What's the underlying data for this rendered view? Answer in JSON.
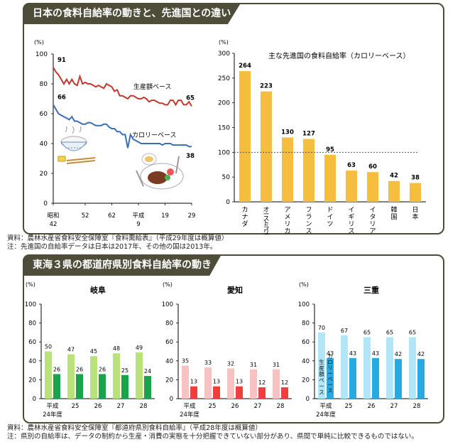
{
  "section1": {
    "title": "日本の食料自給率の動きと、先進国との違い",
    "footnote1": "資料：農林水産省食料安全保障室『食料需給表』（平成29年度は概算値）",
    "footnote2": "注：先進国の自給率データは日本は2017年、その他の国は2013年。"
  },
  "section2": {
    "title": "東海３県の都道府県別食料自給率の動き",
    "footnote1": "資料：農林水産省食料安全保障室『都道府県別食料自給率』（平成28年度は概算値）",
    "footnote2": "注：県別の自給率は、データの制約から生産・消費の実態を十分把握できていない部分があり、県間で単純に比較できるものではない。"
  },
  "colors": {
    "production": "#c0392b",
    "calorie": "#3a6fb5",
    "country_bar": "#f6be3f",
    "gifu_prod": "#b9e27a",
    "gifu_cal": "#1aa34a",
    "aichi_prod": "#f6c2c2",
    "aichi_cal": "#ee3e3e",
    "mie_prod": "#b0e6f6",
    "mie_cal": "#27aae1"
  },
  "chart_data": [
    {
      "type": "line",
      "unit": "(%)",
      "ylim": [
        0,
        100
      ],
      "yticks": [
        0,
        20,
        40,
        60,
        80,
        100
      ],
      "x_range": [
        1965,
        2017
      ],
      "x_ticks": [
        {
          "x": 1965,
          "top": "昭和",
          "bottom": "42"
        },
        {
          "x": 1977,
          "top": "52",
          "bottom": ""
        },
        {
          "x": 1987,
          "top": "62",
          "bottom": ""
        },
        {
          "x": 1997,
          "top": "平成",
          "bottom": "9"
        },
        {
          "x": 2007,
          "top": "19",
          "bottom": ""
        },
        {
          "x": 2017,
          "top": "29",
          "bottom": ""
        }
      ],
      "series": [
        {
          "name": "生産額ベース",
          "start_label": "91",
          "end_label": "65",
          "x": [
            1965,
            1966,
            1967,
            1968,
            1969,
            1970,
            1971,
            1972,
            1973,
            1974,
            1975,
            1976,
            1977,
            1978,
            1979,
            1980,
            1981,
            1982,
            1983,
            1984,
            1985,
            1986,
            1987,
            1988,
            1989,
            1990,
            1991,
            1992,
            1993,
            1994,
            1995,
            1996,
            1997,
            1998,
            1999,
            2000,
            2001,
            2002,
            2003,
            2004,
            2005,
            2006,
            2007,
            2008,
            2009,
            2010,
            2011,
            2012,
            2013,
            2014,
            2015,
            2016,
            2017
          ],
          "values": [
            91,
            88,
            86,
            83,
            80,
            83,
            80,
            83,
            80,
            79,
            85,
            80,
            81,
            80,
            80,
            79,
            78,
            79,
            78,
            77,
            80,
            79,
            78,
            75,
            76,
            72,
            72,
            71,
            70,
            72,
            72,
            71,
            70,
            70,
            71,
            70,
            68,
            69,
            69,
            68,
            67,
            67,
            66,
            66,
            69,
            69,
            66,
            69,
            69,
            66,
            66,
            68,
            65
          ]
        },
        {
          "name": "カロリーベース",
          "start_label": "66",
          "end_label": "38",
          "x": [
            1965,
            1966,
            1967,
            1968,
            1969,
            1970,
            1971,
            1972,
            1973,
            1974,
            1975,
            1976,
            1977,
            1978,
            1979,
            1980,
            1981,
            1982,
            1983,
            1984,
            1985,
            1986,
            1987,
            1988,
            1989,
            1990,
            1991,
            1992,
            1993,
            1994,
            1995,
            1996,
            1997,
            1998,
            1999,
            2000,
            2001,
            2002,
            2003,
            2004,
            2005,
            2006,
            2007,
            2008,
            2009,
            2010,
            2011,
            2012,
            2013,
            2014,
            2015,
            2016,
            2017
          ],
          "values": [
            66,
            63,
            60,
            59,
            58,
            57,
            56,
            58,
            55,
            55,
            54,
            53,
            53,
            54,
            54,
            53,
            52,
            52,
            52,
            53,
            53,
            51,
            50,
            50,
            48,
            48,
            46,
            46,
            37,
            46,
            43,
            42,
            41,
            40,
            40,
            40,
            40,
            40,
            40,
            40,
            40,
            39,
            40,
            40,
            40,
            39,
            39,
            39,
            39,
            39,
            39,
            38,
            38
          ]
        }
      ]
    },
    {
      "type": "bar",
      "title": "主な先進国の食料自給率（カロリーベース）",
      "unit": "(%)",
      "ylim": [
        0,
        300
      ],
      "yticks": [
        0,
        50,
        100,
        150,
        200,
        250,
        300
      ],
      "reference_line": 100,
      "categories": [
        "カナダ",
        "オーストラリア",
        "アメリカ",
        "フランス",
        "ドイツ",
        "イギリス",
        "イタリア",
        "韓国",
        "日本"
      ],
      "values": [
        264,
        223,
        130,
        127,
        95,
        63,
        60,
        42,
        38
      ]
    },
    {
      "type": "bar",
      "title": "岐阜",
      "unit": "(%)",
      "ylim": [
        0,
        100
      ],
      "yticks": [
        0,
        20,
        40,
        60,
        80,
        100
      ],
      "categories": [
        "平成24年度",
        "25",
        "26",
        "27",
        "28"
      ],
      "series": [
        {
          "name": "生産額ベース",
          "values": [
            50,
            47,
            45,
            48,
            49
          ]
        },
        {
          "name": "カロリーベース",
          "values": [
            26,
            26,
            26,
            25,
            24
          ]
        }
      ]
    },
    {
      "type": "bar",
      "title": "愛知",
      "unit": "(%)",
      "ylim": [
        0,
        100
      ],
      "yticks": [
        0,
        20,
        40,
        60,
        80,
        100
      ],
      "categories": [
        "平成24年度",
        "25",
        "26",
        "27",
        "28"
      ],
      "series": [
        {
          "name": "生産額ベース",
          "values": [
            35,
            33,
            32,
            31,
            31
          ]
        },
        {
          "name": "カロリーベース",
          "values": [
            13,
            13,
            13,
            12,
            12
          ]
        }
      ]
    },
    {
      "type": "bar",
      "title": "三重",
      "unit": "(%)",
      "ylim": [
        0,
        100
      ],
      "yticks": [
        0,
        20,
        40,
        60,
        80,
        100
      ],
      "categories": [
        "平成24年度",
        "25",
        "26",
        "27",
        "28"
      ],
      "series": [
        {
          "name": "生産額ベース",
          "values": [
            70,
            67,
            65,
            65,
            65
          ]
        },
        {
          "name": "カロリーベース",
          "values": [
            43,
            43,
            43,
            42,
            42
          ]
        }
      ]
    }
  ]
}
